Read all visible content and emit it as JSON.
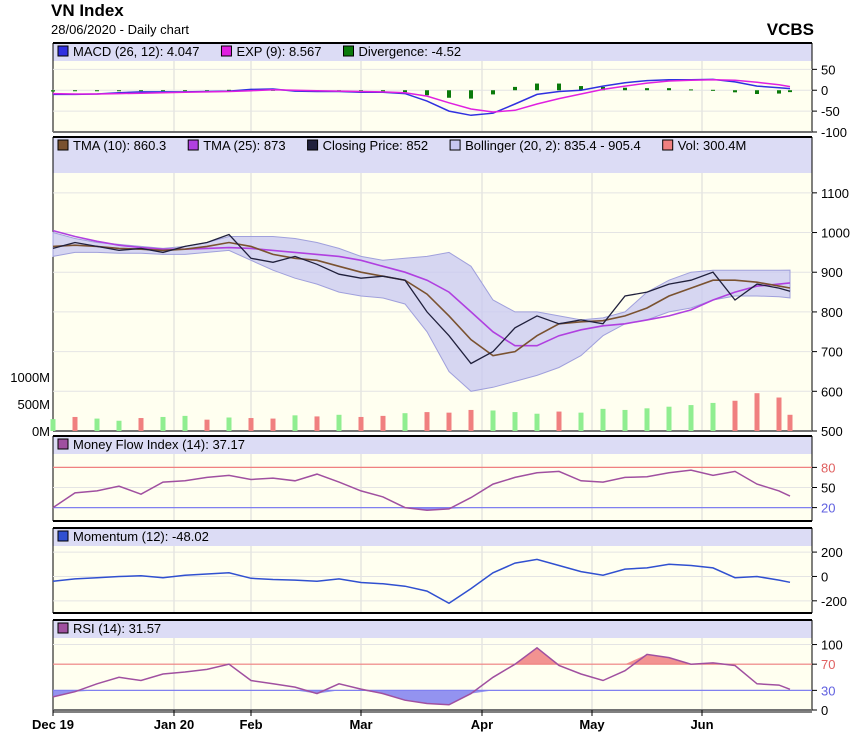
{
  "header": {
    "title": "VN Index",
    "subtitle": "28/06/2020 - Daily chart",
    "brand": "VCBS"
  },
  "colors": {
    "panel_bg": "#fffff0",
    "legend_bg": "#dcdcf5",
    "tma10": "#7a5230",
    "tma25": "#b040e0",
    "close": "#20203c",
    "bollinger_fill": "#c8c8f2",
    "bollinger_line": "#a0a0dc",
    "vol_up": "#90ee90",
    "vol_down": "#f08080",
    "macd": "#3030e0",
    "exp": "#e020e0",
    "divergence": "#0a7a0a",
    "mfi": "#a050a0",
    "momentum": "#3050d0",
    "rsi": "#a050a0",
    "overbought": "#f08080",
    "oversold": "#8080f0"
  },
  "chart_data": [
    {
      "panel": "macd",
      "type": "line",
      "legend": [
        {
          "label": "MACD (26, 12): 4.047",
          "color": "#3030e0"
        },
        {
          "label": "EXP (9): 8.567",
          "color": "#e020e0"
        },
        {
          "label": "Divergence: -4.52",
          "color": "#0a7a0a"
        }
      ],
      "ylim": [
        -100,
        70
      ],
      "yticks": [
        {
          "v": 50,
          "t": "50"
        },
        {
          "v": 0,
          "t": "0"
        },
        {
          "v": -50,
          "t": "-50"
        },
        {
          "v": -100,
          "t": "-100"
        }
      ],
      "x": [
        0,
        4,
        8,
        12,
        16,
        20,
        24,
        28,
        32,
        36,
        40,
        44,
        48,
        52,
        56,
        60,
        64,
        68,
        72,
        76,
        80,
        84,
        88,
        92,
        96,
        100,
        104,
        108,
        112,
        116,
        120,
        124,
        128,
        132,
        134
      ],
      "series": [
        {
          "name": "MACD (26, 12)",
          "color": "#3030e0",
          "values": [
            -10,
            -10,
            -9,
            -6,
            -4,
            -4,
            -4,
            -3,
            -2,
            2,
            3,
            -2,
            -3,
            -3,
            -5,
            -5,
            -8,
            -26,
            -50,
            -60,
            -55,
            -33,
            -10,
            -3,
            0,
            10,
            18,
            23,
            25,
            25,
            26,
            20,
            10,
            6,
            4.0
          ]
        },
        {
          "name": "EXP (9)",
          "color": "#e020e0",
          "values": [
            -8,
            -9,
            -9,
            -8,
            -7,
            -6,
            -5,
            -4,
            -3,
            -1,
            1,
            0,
            -1,
            -2,
            -3,
            -4,
            -6,
            -14,
            -30,
            -45,
            -52,
            -48,
            -33,
            -20,
            -9,
            2,
            10,
            17,
            22,
            24,
            25,
            24,
            19,
            13,
            8.6
          ]
        }
      ],
      "divergence": [
        -3,
        -2,
        0,
        -1,
        -1,
        0,
        -1,
        0,
        1,
        2,
        1,
        -2,
        -2,
        -3,
        -3,
        -4,
        -5,
        -12,
        -18,
        -20,
        -10,
        8,
        16,
        16,
        10,
        8,
        6,
        5,
        5,
        2,
        1,
        -5,
        -9,
        -8,
        -4.5
      ]
    },
    {
      "panel": "price",
      "type": "line",
      "legend": [
        {
          "label": "TMA (10): 860.3",
          "color": "#7a5230"
        },
        {
          "label": "TMA (25): 873",
          "color": "#b040e0"
        },
        {
          "label": "Closing Price: 852",
          "color": "#20203c"
        },
        {
          "label": "Bollinger (20, 2): 835.4 - 905.4",
          "color": "#c8c8f2"
        },
        {
          "label": "Vol: 300.4M",
          "color": "#f08080"
        }
      ],
      "ylim": [
        500,
        1150
      ],
      "yticks": [
        {
          "v": 1100,
          "t": "1100"
        },
        {
          "v": 1000,
          "t": "1000"
        },
        {
          "v": 900,
          "t": "900"
        },
        {
          "v": 800,
          "t": "800"
        },
        {
          "v": 700,
          "t": "700"
        },
        {
          "v": 600,
          "t": "600"
        },
        {
          "v": 500,
          "t": "500"
        }
      ],
      "x": [
        0,
        4,
        8,
        12,
        16,
        20,
        24,
        28,
        32,
        36,
        40,
        44,
        48,
        52,
        56,
        60,
        64,
        68,
        72,
        76,
        80,
        84,
        88,
        92,
        96,
        100,
        104,
        108,
        112,
        116,
        120,
        124,
        128,
        132,
        134
      ],
      "series": [
        {
          "name": "Closing Price",
          "color": "#20203c",
          "values": [
            960,
            975,
            965,
            955,
            960,
            950,
            965,
            975,
            995,
            935,
            925,
            940,
            920,
            895,
            885,
            890,
            880,
            800,
            740,
            670,
            700,
            760,
            790,
            770,
            780,
            770,
            840,
            850,
            870,
            880,
            900,
            830,
            870,
            860,
            852
          ]
        },
        {
          "name": "TMA (10)",
          "color": "#7a5230",
          "values": [
            965,
            968,
            965,
            960,
            958,
            955,
            958,
            965,
            975,
            965,
            945,
            935,
            930,
            915,
            900,
            890,
            880,
            845,
            790,
            730,
            690,
            700,
            740,
            770,
            775,
            778,
            790,
            810,
            840,
            860,
            880,
            880,
            875,
            865,
            860.3
          ]
        },
        {
          "name": "TMA (25)",
          "color": "#b040e0",
          "values": [
            1005,
            990,
            978,
            968,
            962,
            958,
            958,
            960,
            962,
            960,
            955,
            950,
            945,
            940,
            930,
            915,
            900,
            880,
            850,
            800,
            750,
            715,
            715,
            740,
            755,
            765,
            770,
            780,
            790,
            805,
            830,
            850,
            865,
            870,
            873
          ]
        },
        {
          "name": "Bollinger upper",
          "color": "#a0a0dc",
          "values": [
            1000,
            985,
            975,
            970,
            965,
            960,
            965,
            975,
            990,
            990,
            990,
            985,
            975,
            960,
            940,
            930,
            935,
            940,
            950,
            915,
            830,
            800,
            800,
            790,
            780,
            785,
            800,
            850,
            880,
            900,
            905,
            905,
            905,
            905,
            905.4
          ]
        },
        {
          "name": "Bollinger lower",
          "color": "#a0a0dc",
          "values": [
            940,
            950,
            950,
            948,
            948,
            945,
            945,
            950,
            955,
            930,
            905,
            885,
            870,
            850,
            840,
            835,
            820,
            750,
            650,
            600,
            610,
            625,
            640,
            660,
            690,
            740,
            770,
            780,
            800,
            810,
            830,
            840,
            840,
            838,
            835.4
          ]
        }
      ],
      "volume": {
        "ylim": [
          0,
          1500
        ],
        "yticks": [
          {
            "v": 1000,
            "t": "1000M"
          },
          {
            "v": 500,
            "t": "500M"
          },
          {
            "v": 0,
            "t": "0M"
          }
        ],
        "values": [
          220,
          260,
          230,
          190,
          240,
          260,
          280,
          210,
          250,
          240,
          230,
          290,
          270,
          300,
          260,
          280,
          330,
          350,
          340,
          390,
          380,
          350,
          320,
          360,
          340,
          410,
          390,
          420,
          450,
          480,
          520,
          560,
          700,
          620,
          300.4
        ],
        "up": [
          true,
          false,
          true,
          true,
          false,
          true,
          true,
          false,
          true,
          false,
          false,
          true,
          false,
          true,
          false,
          false,
          true,
          false,
          false,
          false,
          true,
          true,
          true,
          false,
          true,
          true,
          true,
          true,
          true,
          true,
          true,
          false,
          false,
          false,
          false
        ]
      }
    },
    {
      "panel": "mfi",
      "type": "line",
      "legend": [
        {
          "label": "Money Flow Index (14): 37.17",
          "color": "#a050a0"
        }
      ],
      "ylim": [
        0,
        100
      ],
      "yticks": [
        {
          "v": 80,
          "t": "80",
          "color": "#e06060"
        },
        {
          "v": 50,
          "t": "50"
        },
        {
          "v": 20,
          "t": "20",
          "color": "#6060e0"
        }
      ],
      "bands": [
        80,
        20
      ],
      "x": [
        0,
        4,
        8,
        12,
        16,
        20,
        24,
        28,
        32,
        36,
        40,
        44,
        48,
        52,
        56,
        60,
        64,
        68,
        72,
        76,
        80,
        84,
        88,
        92,
        96,
        100,
        104,
        108,
        112,
        116,
        120,
        124,
        128,
        132,
        134
      ],
      "values": [
        20,
        42,
        45,
        52,
        40,
        58,
        60,
        65,
        68,
        62,
        64,
        60,
        70,
        58,
        45,
        36,
        20,
        16,
        18,
        35,
        55,
        65,
        72,
        74,
        60,
        58,
        65,
        66,
        72,
        76,
        68,
        74,
        55,
        45,
        37.17
      ]
    },
    {
      "panel": "momentum",
      "type": "line",
      "legend": [
        {
          "label": "Momentum (12): -48.02",
          "color": "#3050d0"
        }
      ],
      "ylim": [
        -300,
        250
      ],
      "yticks": [
        {
          "v": 200,
          "t": "200"
        },
        {
          "v": 0,
          "t": "0"
        },
        {
          "v": -200,
          "t": "-200"
        }
      ],
      "x": [
        0,
        4,
        8,
        12,
        16,
        20,
        24,
        28,
        32,
        36,
        40,
        44,
        48,
        52,
        56,
        60,
        64,
        68,
        72,
        76,
        80,
        84,
        88,
        92,
        96,
        100,
        104,
        108,
        112,
        116,
        120,
        124,
        128,
        132,
        134
      ],
      "values": [
        -40,
        -20,
        -10,
        0,
        5,
        -10,
        10,
        20,
        30,
        -15,
        -25,
        -30,
        -40,
        -20,
        -50,
        -60,
        -80,
        -120,
        -220,
        -100,
        30,
        110,
        140,
        90,
        40,
        10,
        60,
        70,
        100,
        90,
        70,
        -10,
        0,
        -30,
        -48.02
      ]
    },
    {
      "panel": "rsi",
      "type": "area",
      "legend": [
        {
          "label": "RSI (14): 31.57",
          "color": "#a050a0"
        }
      ],
      "ylim": [
        0,
        110
      ],
      "yticks": [
        {
          "v": 100,
          "t": "100"
        },
        {
          "v": 70,
          "t": "70",
          "color": "#e06060"
        },
        {
          "v": 30,
          "t": "30",
          "color": "#6060e0"
        },
        {
          "v": 0,
          "t": "0"
        }
      ],
      "bands": [
        70,
        30
      ],
      "x": [
        0,
        4,
        8,
        12,
        16,
        20,
        24,
        28,
        32,
        36,
        40,
        44,
        48,
        52,
        56,
        60,
        64,
        68,
        72,
        76,
        80,
        84,
        88,
        92,
        96,
        100,
        104,
        108,
        112,
        116,
        120,
        124,
        128,
        132,
        134
      ],
      "values": [
        20,
        28,
        40,
        50,
        45,
        55,
        58,
        62,
        70,
        45,
        40,
        35,
        25,
        40,
        32,
        25,
        15,
        10,
        8,
        25,
        50,
        70,
        95,
        68,
        55,
        45,
        60,
        85,
        80,
        70,
        72,
        68,
        40,
        38,
        31.57
      ]
    }
  ],
  "x_axis": {
    "labels": [
      {
        "x": 0,
        "t": "Dec 19"
      },
      {
        "x": 22,
        "t": "Jan 20"
      },
      {
        "x": 36,
        "t": "Feb"
      },
      {
        "x": 56,
        "t": "Mar"
      },
      {
        "x": 78,
        "t": "Apr"
      },
      {
        "x": 98,
        "t": "May"
      },
      {
        "x": 118,
        "t": "Jun"
      }
    ],
    "xlim": [
      0,
      138
    ]
  }
}
